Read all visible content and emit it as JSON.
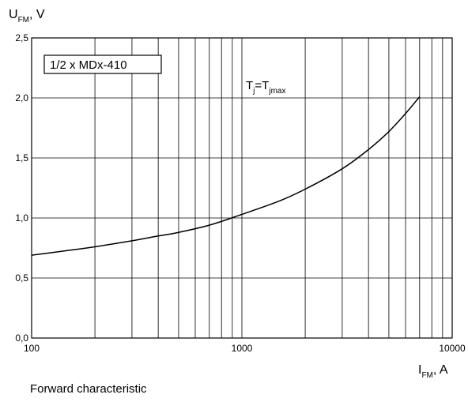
{
  "chart_data": {
    "type": "line",
    "x_scale": "log",
    "xlim": [
      100,
      10000
    ],
    "ylim": [
      0.0,
      2.5
    ],
    "x_ticks": [
      {
        "value": 100,
        "label": "100"
      },
      {
        "value": 1000,
        "label": "1000"
      },
      {
        "value": 10000,
        "label": "10000"
      }
    ],
    "y_ticks": [
      {
        "value": 0.0,
        "label": "0,0"
      },
      {
        "value": 0.5,
        "label": "0,5"
      },
      {
        "value": 1.0,
        "label": "1,0"
      },
      {
        "value": 1.5,
        "label": "1,5"
      },
      {
        "value": 2.0,
        "label": "2,0"
      },
      {
        "value": 2.5,
        "label": "2,5"
      }
    ],
    "ylabel": {
      "main": "U",
      "sub": "FM",
      "suffix": ", V"
    },
    "xlabel": {
      "main": "I",
      "sub": "FM",
      "suffix": ", A"
    },
    "grid": true,
    "legend_box_label": "1/2 x MDx-410",
    "annotation": {
      "main1": "T",
      "sub1": "j",
      "mid": "=T",
      "sub2": "jmax"
    },
    "series": [
      {
        "x": [
          100,
          150,
          200,
          300,
          400,
          500,
          700,
          1000,
          1500,
          2000,
          3000,
          4000,
          5000,
          6000,
          7000
        ],
        "y": [
          0.69,
          0.73,
          0.76,
          0.81,
          0.85,
          0.88,
          0.94,
          1.03,
          1.14,
          1.24,
          1.41,
          1.57,
          1.72,
          1.87,
          2.01
        ]
      }
    ]
  },
  "caption": "Forward characteristic"
}
